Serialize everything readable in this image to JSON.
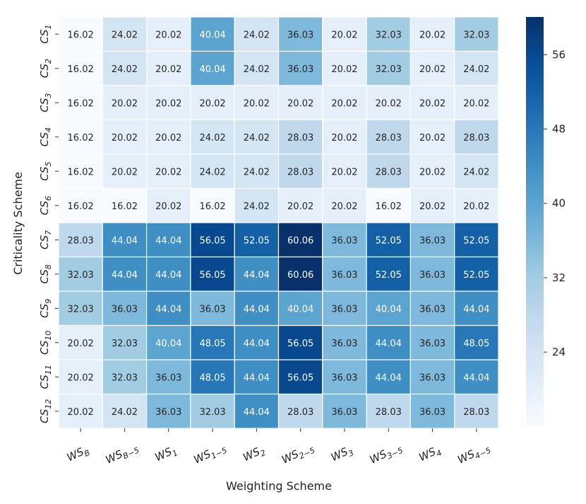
{
  "chart_data": {
    "type": "heatmap",
    "title": "",
    "xlabel": "Weighting Scheme",
    "ylabel": "Criticality Scheme",
    "x_categories": [
      {
        "base": "WS",
        "sub": "B"
      },
      {
        "base": "WS",
        "sub": "B−5"
      },
      {
        "base": "WS",
        "sub": "1"
      },
      {
        "base": "WS",
        "sub": "1−5"
      },
      {
        "base": "WS",
        "sub": "2"
      },
      {
        "base": "WS",
        "sub": "2−5"
      },
      {
        "base": "WS",
        "sub": "3"
      },
      {
        "base": "WS",
        "sub": "3−5"
      },
      {
        "base": "WS",
        "sub": "4"
      },
      {
        "base": "WS",
        "sub": "4−5"
      }
    ],
    "y_categories": [
      {
        "base": "CS",
        "sub": "1"
      },
      {
        "base": "CS",
        "sub": "2"
      },
      {
        "base": "CS",
        "sub": "3"
      },
      {
        "base": "CS",
        "sub": "4"
      },
      {
        "base": "CS",
        "sub": "5"
      },
      {
        "base": "CS",
        "sub": "6"
      },
      {
        "base": "CS",
        "sub": "7"
      },
      {
        "base": "CS",
        "sub": "8"
      },
      {
        "base": "CS",
        "sub": "9"
      },
      {
        "base": "CS",
        "sub": "10"
      },
      {
        "base": "CS",
        "sub": "11"
      },
      {
        "base": "CS",
        "sub": "12"
      }
    ],
    "values": [
      [
        16.02,
        24.02,
        20.02,
        40.04,
        24.02,
        36.03,
        20.02,
        32.03,
        20.02,
        32.03
      ],
      [
        16.02,
        24.02,
        20.02,
        40.04,
        24.02,
        36.03,
        20.02,
        32.03,
        20.02,
        24.02
      ],
      [
        16.02,
        20.02,
        20.02,
        20.02,
        20.02,
        20.02,
        20.02,
        20.02,
        20.02,
        20.02
      ],
      [
        16.02,
        20.02,
        20.02,
        24.02,
        24.02,
        28.03,
        20.02,
        28.03,
        20.02,
        28.03
      ],
      [
        16.02,
        20.02,
        20.02,
        24.02,
        24.02,
        28.03,
        20.02,
        28.03,
        20.02,
        24.02
      ],
      [
        16.02,
        16.02,
        20.02,
        16.02,
        24.02,
        20.02,
        20.02,
        16.02,
        20.02,
        20.02
      ],
      [
        28.03,
        44.04,
        44.04,
        56.05,
        52.05,
        60.06,
        36.03,
        52.05,
        36.03,
        52.05
      ],
      [
        32.03,
        44.04,
        44.04,
        56.05,
        44.04,
        60.06,
        36.03,
        52.05,
        36.03,
        52.05
      ],
      [
        32.03,
        36.03,
        44.04,
        36.03,
        44.04,
        40.04,
        36.03,
        40.04,
        36.03,
        44.04
      ],
      [
        20.02,
        32.03,
        40.04,
        48.05,
        44.04,
        56.05,
        36.03,
        44.04,
        36.03,
        48.05
      ],
      [
        20.02,
        32.03,
        36.03,
        48.05,
        44.04,
        56.05,
        36.03,
        44.04,
        36.03,
        44.04
      ],
      [
        20.02,
        24.02,
        36.03,
        32.03,
        44.04,
        28.03,
        36.03,
        28.03,
        36.03,
        28.03
      ]
    ],
    "colorscale": "Blues",
    "vmin": 16.02,
    "vmax": 60.06,
    "colorbar_ticks": [
      24,
      32,
      40,
      48,
      56
    ],
    "grid": false,
    "legend": "colorbar-right"
  }
}
